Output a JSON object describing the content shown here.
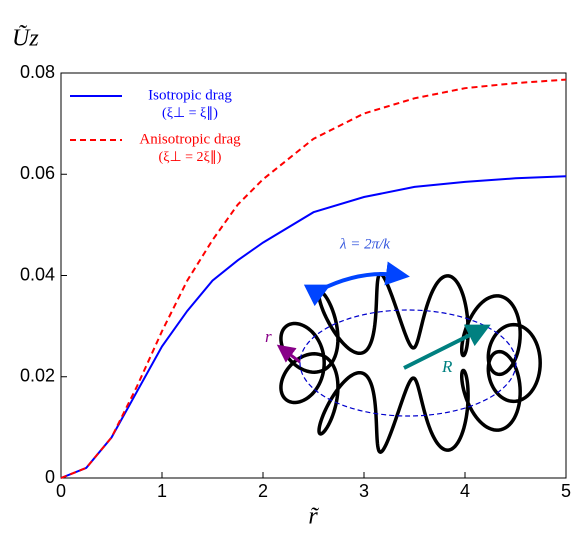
{
  "chart_data": {
    "type": "line",
    "y_label": "Ũz",
    "x_label": "r̃",
    "x": [
      0,
      0.25,
      0.5,
      0.75,
      1,
      1.25,
      1.5,
      1.75,
      2,
      2.5,
      3,
      3.5,
      4,
      4.5,
      5
    ],
    "series": [
      {
        "name": "Isotropic drag",
        "detail": "(ξ⊥ = ξ∥)",
        "color": "#0000ff",
        "dash": "none",
        "values": [
          0,
          0.002,
          0.008,
          0.017,
          0.026,
          0.033,
          0.039,
          0.043,
          0.0465,
          0.0525,
          0.0555,
          0.0575,
          0.0585,
          0.0592,
          0.0596
        ]
      },
      {
        "name": "Anisotropic drag",
        "detail": "(ξ⊥ = 2ξ∥)",
        "color": "#ff0000",
        "dash": "6,4",
        "values": [
          0,
          0.002,
          0.008,
          0.018,
          0.029,
          0.039,
          0.047,
          0.054,
          0.059,
          0.067,
          0.072,
          0.075,
          0.077,
          0.078,
          0.0787
        ]
      }
    ],
    "xlim": [
      0,
      5
    ],
    "xticks": [
      0,
      1,
      2,
      3,
      4,
      5
    ],
    "ylim": [
      0,
      0.08
    ],
    "yticks": [
      0,
      0.02,
      0.04,
      0.06,
      0.08
    ],
    "annotations": {
      "wavelength": "λ = 2π/k",
      "small_radius": "r",
      "large_radius": "R"
    }
  }
}
